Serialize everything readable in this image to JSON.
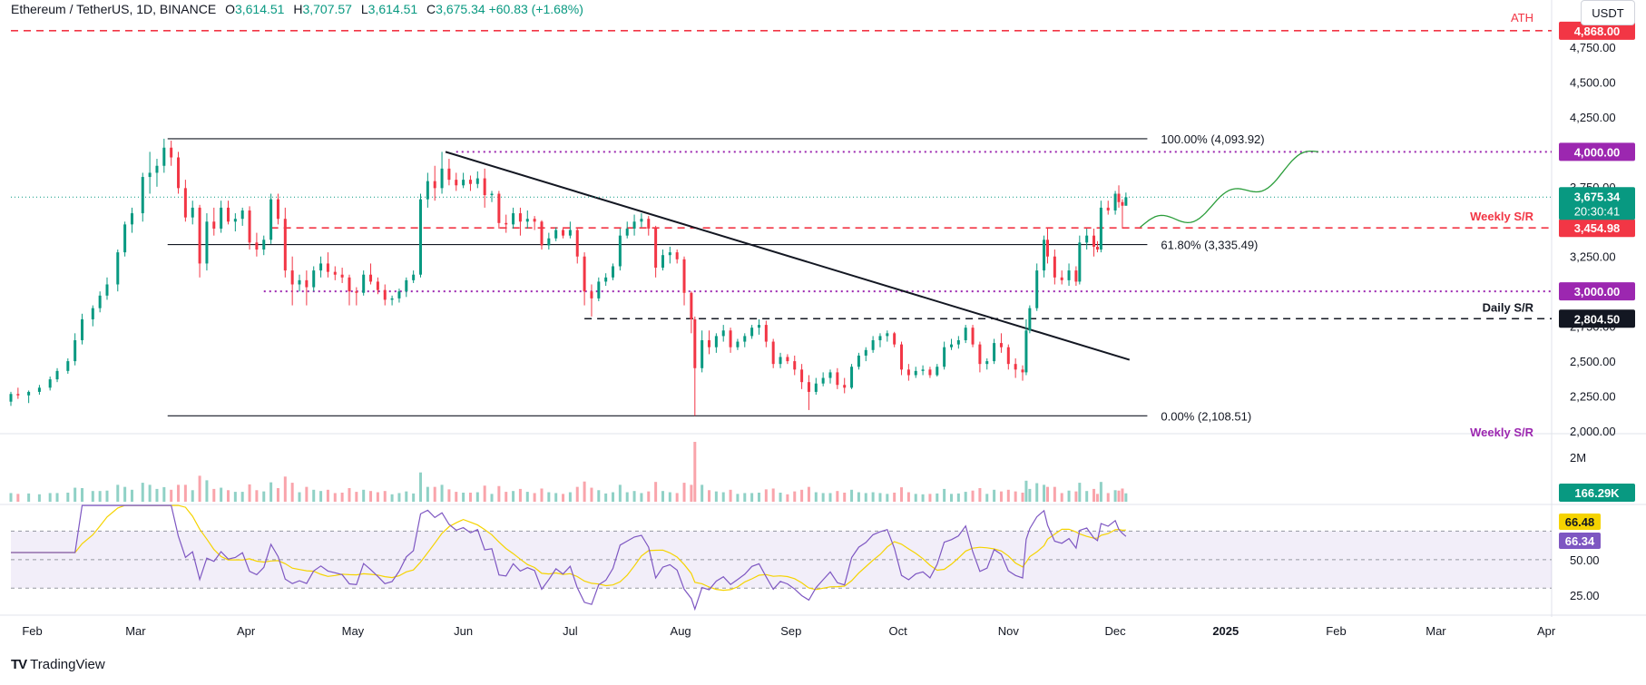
{
  "header": {
    "symbol": "Ethereum / TetherUS, 1D, BINANCE",
    "o_label": "O",
    "o_value": "3,614.51",
    "h_label": "H",
    "h_value": "3,707.57",
    "l_label": "L",
    "l_value": "3,614.51",
    "c_label": "C",
    "c_value": "3,675.34",
    "change": "+60.83 (+1.68%)"
  },
  "currency": "USDT",
  "branding": "TradingView",
  "colors": {
    "up": "#089981",
    "down": "#f23645",
    "purple": "#9c27b0",
    "rsi_line": "#7e57c2",
    "rsi_ma": "#f5d300",
    "rsi_band": "#7e57c2",
    "projection": "#2a9d3a"
  },
  "chart_data": {
    "type": "candlestick",
    "price_axis": {
      "ticks": [
        "4,750.00",
        "4,500.00",
        "4,250.00",
        "4,000.00",
        "3,750.00",
        "3,250.00",
        "3,000.00",
        "2,750.00",
        "2,500.00",
        "2,250.00",
        "2,000.00"
      ],
      "range": [
        2000,
        4800
      ]
    },
    "x_axis": {
      "ticks": [
        "Feb",
        "Mar",
        "Apr",
        "May",
        "Jun",
        "Jul",
        "Aug",
        "Sep",
        "Oct",
        "Nov",
        "Dec",
        "2025",
        "Feb",
        "Mar",
        "Apr"
      ]
    },
    "last_price": {
      "value": "3,675.34",
      "countdown": "20:30:41"
    },
    "levels": [
      {
        "label": "ATH",
        "value": 4868,
        "badge": "4,868.00",
        "style": "red-dashed"
      },
      {
        "label": "",
        "value": 4000,
        "badge": "4,000.00",
        "style": "purple-dotted"
      },
      {
        "label": "Weekly S/R",
        "value": 3454.98,
        "badge": "3,454.98",
        "style": "red-dashed"
      },
      {
        "label": "",
        "value": 3000,
        "badge": "3,000.00",
        "style": "purple-dotted"
      },
      {
        "label": "Daily S/R",
        "value": 2804.5,
        "badge": "2,804.50",
        "style": "black-dashed"
      }
    ],
    "bottom_label": "Weekly S/R",
    "fibonacci": [
      {
        "label": "100.00% (4,093.92)",
        "value": 4093.92
      },
      {
        "label": "61.80% (3,335.49)",
        "value": 3335.49
      },
      {
        "label": "0.00% (2,108.51)",
        "value": 2108.51
      }
    ],
    "trendline": {
      "from": [
        "2024-05-27",
        4000
      ],
      "to": [
        "2024-12-05",
        2510
      ]
    },
    "candles_ohlc": [
      [
        "2024-01-26",
        2210,
        2280,
        2180,
        2265
      ],
      [
        "2024-01-28",
        2265,
        2310,
        2230,
        2255
      ],
      [
        "2024-01-31",
        2255,
        2290,
        2200,
        2280
      ],
      [
        "2024-02-03",
        2280,
        2330,
        2260,
        2310
      ],
      [
        "2024-02-06",
        2310,
        2390,
        2290,
        2370
      ],
      [
        "2024-02-08",
        2370,
        2450,
        2350,
        2430
      ],
      [
        "2024-02-11",
        2430,
        2520,
        2410,
        2500
      ],
      [
        "2024-02-13",
        2500,
        2700,
        2470,
        2650
      ],
      [
        "2024-02-15",
        2650,
        2840,
        2620,
        2800
      ],
      [
        "2024-02-18",
        2800,
        2900,
        2750,
        2880
      ],
      [
        "2024-02-20",
        2880,
        3000,
        2850,
        2970
      ],
      [
        "2024-02-22",
        2970,
        3100,
        2940,
        3050
      ],
      [
        "2024-02-25",
        3050,
        3300,
        3000,
        3280
      ],
      [
        "2024-02-27",
        3280,
        3500,
        3250,
        3480
      ],
      [
        "2024-02-29",
        3480,
        3600,
        3420,
        3560
      ],
      [
        "2024-03-03",
        3560,
        3850,
        3500,
        3820
      ],
      [
        "2024-03-05",
        3820,
        4000,
        3700,
        3850
      ],
      [
        "2024-03-07",
        3850,
        3950,
        3750,
        3900
      ],
      [
        "2024-03-09",
        3900,
        4094,
        3850,
        4030
      ],
      [
        "2024-03-11",
        4030,
        4080,
        3900,
        3960
      ],
      [
        "2024-03-13",
        3960,
        4000,
        3700,
        3740
      ],
      [
        "2024-03-15",
        3740,
        3800,
        3500,
        3530
      ],
      [
        "2024-03-17",
        3530,
        3650,
        3480,
        3600
      ],
      [
        "2024-03-19",
        3600,
        3620,
        3100,
        3200
      ],
      [
        "2024-03-21",
        3200,
        3560,
        3150,
        3500
      ],
      [
        "2024-03-23",
        3500,
        3600,
        3400,
        3450
      ],
      [
        "2024-03-25",
        3450,
        3650,
        3420,
        3600
      ],
      [
        "2024-03-27",
        3600,
        3650,
        3480,
        3500
      ],
      [
        "2024-03-29",
        3500,
        3560,
        3430,
        3520
      ],
      [
        "2024-03-31",
        3520,
        3600,
        3470,
        3580
      ],
      [
        "2024-04-02",
        3580,
        3610,
        3300,
        3350
      ],
      [
        "2024-04-04",
        3350,
        3420,
        3250,
        3300
      ],
      [
        "2024-04-06",
        3300,
        3400,
        3260,
        3370
      ],
      [
        "2024-04-08",
        3370,
        3700,
        3340,
        3660
      ],
      [
        "2024-04-10",
        3660,
        3700,
        3480,
        3520
      ],
      [
        "2024-04-12",
        3520,
        3600,
        3100,
        3150
      ],
      [
        "2024-04-14",
        3150,
        3250,
        2900,
        3050
      ],
      [
        "2024-04-16",
        3050,
        3120,
        3000,
        3080
      ],
      [
        "2024-04-18",
        3080,
        3150,
        2900,
        3030
      ],
      [
        "2024-04-20",
        3030,
        3180,
        3000,
        3150
      ],
      [
        "2024-04-22",
        3150,
        3250,
        3100,
        3200
      ],
      [
        "2024-04-24",
        3200,
        3280,
        3100,
        3140
      ],
      [
        "2024-04-26",
        3140,
        3180,
        3080,
        3120
      ],
      [
        "2024-04-28",
        3120,
        3170,
        3060,
        3100
      ],
      [
        "2024-04-30",
        3100,
        3120,
        2900,
        3000
      ],
      [
        "2024-05-02",
        3000,
        3030,
        2900,
        2990
      ],
      [
        "2024-05-04",
        2990,
        3150,
        2970,
        3120
      ],
      [
        "2024-05-06",
        3120,
        3200,
        3050,
        3070
      ],
      [
        "2024-05-08",
        3070,
        3100,
        2980,
        3010
      ],
      [
        "2024-05-10",
        3010,
        3050,
        2900,
        2940
      ],
      [
        "2024-05-12",
        2940,
        2970,
        2900,
        2950
      ],
      [
        "2024-05-14",
        2950,
        3020,
        2920,
        3000
      ],
      [
        "2024-05-16",
        3000,
        3100,
        2960,
        3080
      ],
      [
        "2024-05-18",
        3080,
        3150,
        3060,
        3120
      ],
      [
        "2024-05-20",
        3120,
        3700,
        3100,
        3660
      ],
      [
        "2024-05-22",
        3660,
        3850,
        3600,
        3790
      ],
      [
        "2024-05-24",
        3790,
        3900,
        3650,
        3740
      ],
      [
        "2024-05-26",
        3740,
        4000,
        3700,
        3880
      ],
      [
        "2024-05-28",
        3880,
        3950,
        3760,
        3800
      ],
      [
        "2024-05-30",
        3800,
        3850,
        3720,
        3760
      ],
      [
        "2024-06-01",
        3760,
        3850,
        3740,
        3800
      ],
      [
        "2024-06-03",
        3800,
        3830,
        3720,
        3770
      ],
      [
        "2024-06-05",
        3770,
        3860,
        3740,
        3810
      ],
      [
        "2024-06-07",
        3810,
        3880,
        3600,
        3690
      ],
      [
        "2024-06-09",
        3690,
        3720,
        3640,
        3700
      ],
      [
        "2024-06-11",
        3700,
        3720,
        3450,
        3490
      ],
      [
        "2024-06-13",
        3490,
        3550,
        3420,
        3480
      ],
      [
        "2024-06-15",
        3480,
        3600,
        3450,
        3560
      ],
      [
        "2024-06-17",
        3560,
        3600,
        3400,
        3500
      ],
      [
        "2024-06-19",
        3500,
        3580,
        3450,
        3520
      ],
      [
        "2024-06-21",
        3520,
        3540,
        3440,
        3500
      ],
      [
        "2024-06-23",
        3500,
        3510,
        3300,
        3330
      ],
      [
        "2024-06-25",
        3330,
        3420,
        3300,
        3380
      ],
      [
        "2024-06-27",
        3380,
        3460,
        3360,
        3440
      ],
      [
        "2024-06-29",
        3440,
        3460,
        3380,
        3400
      ],
      [
        "2024-07-01",
        3400,
        3500,
        3380,
        3440
      ],
      [
        "2024-07-03",
        3440,
        3450,
        3200,
        3250
      ],
      [
        "2024-07-05",
        3250,
        3280,
        2900,
        3000
      ],
      [
        "2024-07-07",
        3000,
        3050,
        2820,
        2950
      ],
      [
        "2024-07-09",
        2950,
        3100,
        2930,
        3070
      ],
      [
        "2024-07-11",
        3070,
        3130,
        3040,
        3100
      ],
      [
        "2024-07-13",
        3100,
        3200,
        3080,
        3180
      ],
      [
        "2024-07-15",
        3180,
        3450,
        3150,
        3400
      ],
      [
        "2024-07-17",
        3400,
        3500,
        3380,
        3450
      ],
      [
        "2024-07-19",
        3450,
        3550,
        3400,
        3500
      ],
      [
        "2024-07-21",
        3500,
        3560,
        3460,
        3520
      ],
      [
        "2024-07-23",
        3520,
        3540,
        3400,
        3450
      ],
      [
        "2024-07-25",
        3450,
        3470,
        3100,
        3170
      ],
      [
        "2024-07-27",
        3170,
        3300,
        3150,
        3260
      ],
      [
        "2024-07-29",
        3260,
        3320,
        3200,
        3280
      ],
      [
        "2024-07-31",
        3280,
        3300,
        3200,
        3230
      ],
      [
        "2024-08-02",
        3230,
        3250,
        2900,
        2990
      ],
      [
        "2024-08-04",
        2990,
        3000,
        2700,
        2800
      ],
      [
        "2024-08-05",
        2800,
        2820,
        2109,
        2450
      ],
      [
        "2024-08-07",
        2450,
        2720,
        2420,
        2650
      ],
      [
        "2024-08-09",
        2650,
        2720,
        2550,
        2600
      ],
      [
        "2024-08-11",
        2600,
        2700,
        2560,
        2680
      ],
      [
        "2024-08-13",
        2680,
        2760,
        2640,
        2720
      ],
      [
        "2024-08-15",
        2720,
        2740,
        2560,
        2600
      ],
      [
        "2024-08-17",
        2600,
        2660,
        2580,
        2640
      ],
      [
        "2024-08-19",
        2640,
        2700,
        2600,
        2680
      ],
      [
        "2024-08-21",
        2680,
        2760,
        2660,
        2740
      ],
      [
        "2024-08-23",
        2740,
        2800,
        2690,
        2760
      ],
      [
        "2024-08-25",
        2760,
        2790,
        2600,
        2640
      ],
      [
        "2024-08-27",
        2640,
        2660,
        2450,
        2480
      ],
      [
        "2024-08-29",
        2480,
        2560,
        2450,
        2530
      ],
      [
        "2024-08-31",
        2530,
        2550,
        2480,
        2500
      ],
      [
        "2024-09-02",
        2500,
        2540,
        2400,
        2440
      ],
      [
        "2024-09-04",
        2440,
        2480,
        2300,
        2350
      ],
      [
        "2024-09-06",
        2350,
        2400,
        2150,
        2280
      ],
      [
        "2024-09-08",
        2280,
        2380,
        2260,
        2340
      ],
      [
        "2024-09-10",
        2340,
        2420,
        2320,
        2380
      ],
      [
        "2024-09-12",
        2380,
        2440,
        2340,
        2420
      ],
      [
        "2024-09-14",
        2420,
        2450,
        2300,
        2330
      ],
      [
        "2024-09-16",
        2330,
        2380,
        2270,
        2310
      ],
      [
        "2024-09-18",
        2310,
        2480,
        2300,
        2460
      ],
      [
        "2024-09-20",
        2460,
        2560,
        2440,
        2540
      ],
      [
        "2024-09-22",
        2540,
        2600,
        2500,
        2580
      ],
      [
        "2024-09-24",
        2580,
        2680,
        2560,
        2650
      ],
      [
        "2024-09-26",
        2650,
        2700,
        2600,
        2680
      ],
      [
        "2024-09-28",
        2680,
        2720,
        2640,
        2700
      ],
      [
        "2024-09-30",
        2700,
        2710,
        2600,
        2620
      ],
      [
        "2024-10-02",
        2620,
        2640,
        2400,
        2440
      ],
      [
        "2024-10-04",
        2440,
        2480,
        2360,
        2400
      ],
      [
        "2024-10-06",
        2400,
        2460,
        2380,
        2430
      ],
      [
        "2024-10-08",
        2430,
        2470,
        2400,
        2440
      ],
      [
        "2024-10-10",
        2440,
        2460,
        2380,
        2400
      ],
      [
        "2024-10-12",
        2400,
        2480,
        2390,
        2460
      ],
      [
        "2024-10-14",
        2460,
        2640,
        2440,
        2600
      ],
      [
        "2024-10-16",
        2600,
        2660,
        2580,
        2620
      ],
      [
        "2024-10-18",
        2620,
        2680,
        2590,
        2650
      ],
      [
        "2024-10-20",
        2650,
        2760,
        2630,
        2740
      ],
      [
        "2024-10-22",
        2740,
        2760,
        2600,
        2620
      ],
      [
        "2024-10-24",
        2620,
        2640,
        2420,
        2480
      ],
      [
        "2024-10-26",
        2480,
        2520,
        2440,
        2500
      ],
      [
        "2024-10-28",
        2500,
        2660,
        2480,
        2630
      ],
      [
        "2024-10-30",
        2630,
        2700,
        2560,
        2600
      ],
      [
        "2024-11-01",
        2600,
        2620,
        2440,
        2480
      ],
      [
        "2024-11-03",
        2480,
        2520,
        2380,
        2440
      ],
      [
        "2024-11-05",
        2440,
        2470,
        2360,
        2420
      ],
      [
        "2024-11-06",
        2420,
        2800,
        2400,
        2720
      ],
      [
        "2024-11-07",
        2720,
        2900,
        2700,
        2880
      ],
      [
        "2024-11-09",
        2880,
        3200,
        2860,
        3150
      ],
      [
        "2024-11-11",
        3150,
        3400,
        3100,
        3370
      ],
      [
        "2024-11-12",
        3370,
        3450,
        3200,
        3250
      ],
      [
        "2024-11-14",
        3250,
        3300,
        3050,
        3100
      ],
      [
        "2024-11-16",
        3100,
        3150,
        3050,
        3080
      ],
      [
        "2024-11-18",
        3080,
        3200,
        3040,
        3150
      ],
      [
        "2024-11-20",
        3150,
        3180,
        3040,
        3070
      ],
      [
        "2024-11-21",
        3070,
        3400,
        3050,
        3350
      ],
      [
        "2024-11-23",
        3350,
        3450,
        3300,
        3400
      ],
      [
        "2024-11-25",
        3400,
        3450,
        3250,
        3320
      ],
      [
        "2024-11-26",
        3320,
        3360,
        3280,
        3300
      ],
      [
        "2024-11-27",
        3300,
        3650,
        3280,
        3600
      ],
      [
        "2024-11-29",
        3600,
        3650,
        3550,
        3580
      ],
      [
        "2024-12-01",
        3580,
        3720,
        3550,
        3700
      ],
      [
        "2024-12-02",
        3700,
        3760,
        3600,
        3640
      ],
      [
        "2024-12-03",
        3640,
        3660,
        3450,
        3614
      ],
      [
        "2024-12-04",
        3614,
        3708,
        3614,
        3675
      ]
    ],
    "volume": {
      "axis_label": "2M",
      "last": "166.29K"
    },
    "rsi": {
      "ticks": [
        "50.00",
        "25.00"
      ],
      "value": 66.34,
      "value_label": "66.34",
      "ma": 66.48,
      "ma_label": "66.48",
      "overbought": 70,
      "oversold": 30,
      "mid": 50
    }
  }
}
